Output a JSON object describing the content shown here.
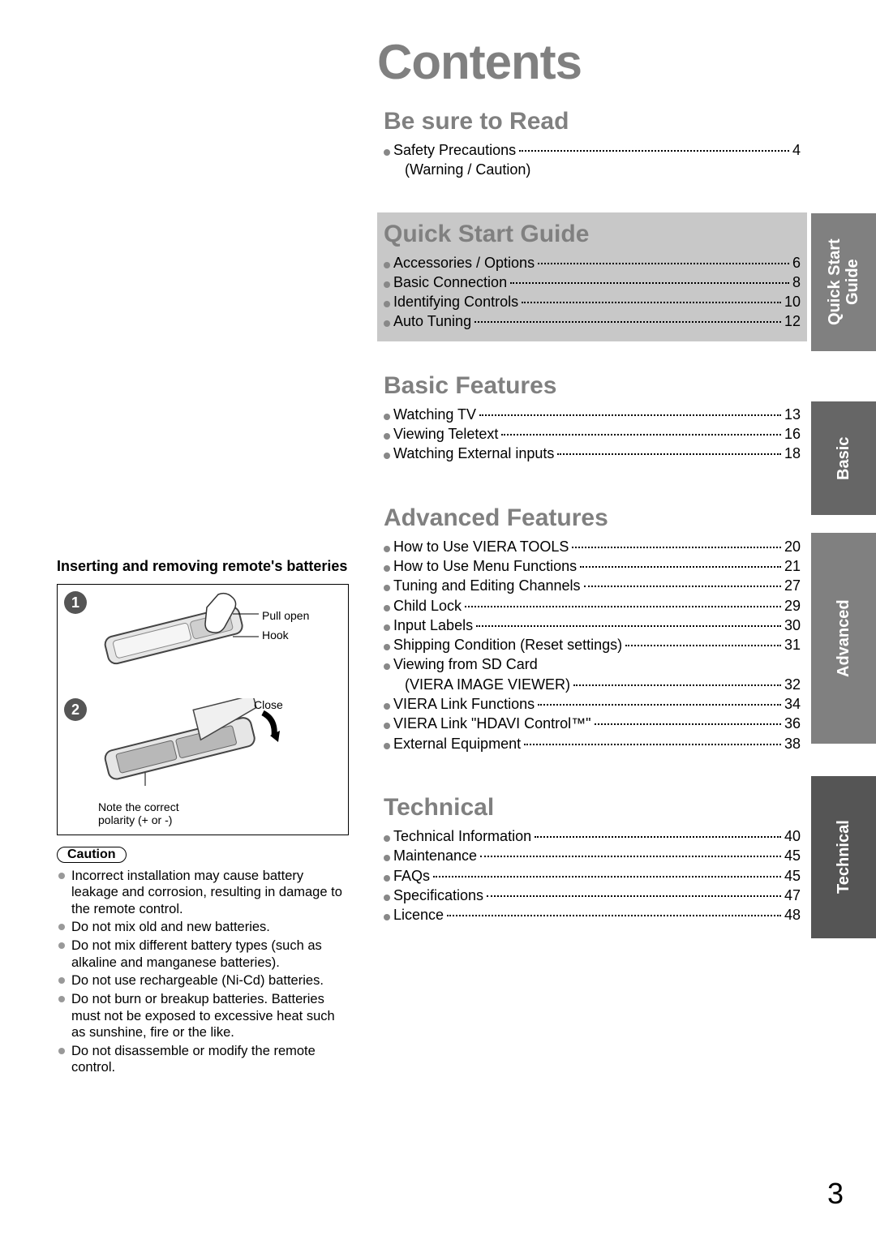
{
  "pageNumber": "3",
  "contentsTitle": "Contents",
  "leftCol": {
    "heading": "Inserting and removing remote's batteries",
    "step1": "1",
    "step2": "2",
    "labelPullOpen": "Pull open",
    "labelHook": "Hook",
    "labelClose": "Close",
    "labelPolarity": "Note the correct polarity (+ or -)",
    "cautionLabel": "Caution",
    "cautions": [
      "Incorrect installation may cause battery leakage and corrosion, resulting in damage to the remote control.",
      "Do not mix old and new batteries.",
      "Do not mix different battery types (such as alkaline and manganese batteries).",
      "Do not use rechargeable (Ni-Cd) batteries.",
      "Do not burn or breakup batteries. Batteries must not be exposed to excessive heat such as sunshine, fire or the like.",
      "Do not disassemble or modify the remote control."
    ]
  },
  "sections": [
    {
      "title": "Be sure to Read",
      "grey": false,
      "items": [
        {
          "label": "Safety Precautions",
          "page": "4",
          "sublabel": "(Warning / Caution)"
        }
      ]
    },
    {
      "title": "Quick Start Guide",
      "grey": true,
      "items": [
        {
          "label": "Accessories / Options",
          "page": "6"
        },
        {
          "label": "Basic Connection",
          "page": "8"
        },
        {
          "label": "Identifying Controls",
          "page": "10"
        },
        {
          "label": "Auto Tuning",
          "page": "12"
        }
      ]
    },
    {
      "title": "Basic Features",
      "grey": false,
      "items": [
        {
          "label": "Watching TV",
          "page": "13"
        },
        {
          "label": "Viewing Teletext",
          "page": "16"
        },
        {
          "label": "Watching External inputs",
          "page": "18"
        }
      ]
    },
    {
      "title": "Advanced Features",
      "grey": false,
      "items": [
        {
          "label": "How to Use VIERA TOOLS",
          "page": "20"
        },
        {
          "label": "How to Use Menu Functions",
          "page": "21"
        },
        {
          "label": "Tuning and Editing Channels",
          "page": "27"
        },
        {
          "label": "Child Lock",
          "page": "29"
        },
        {
          "label": "Input Labels",
          "page": "30"
        },
        {
          "label": "Shipping Condition (Reset settings)",
          "page": "31"
        },
        {
          "label": "Viewing from SD Card",
          "nolead": true
        },
        {
          "label": "(VIERA IMAGE VIEWER)",
          "page": "32",
          "sub": true
        },
        {
          "label": "VIERA Link Functions",
          "page": "34"
        },
        {
          "label": "VIERA Link \"HDAVI Control™\"",
          "page": "36"
        },
        {
          "label": "External Equipment",
          "page": "38"
        }
      ]
    },
    {
      "title": "Technical",
      "grey": false,
      "items": [
        {
          "label": "Technical Information",
          "page": "40"
        },
        {
          "label": "Maintenance",
          "page": "45"
        },
        {
          "label": "FAQs",
          "page": "45"
        },
        {
          "label": "Specifications",
          "page": "47"
        },
        {
          "label": "Licence",
          "page": "48"
        }
      ]
    }
  ],
  "tabs": {
    "qsg": "Quick Start Guide",
    "basic": "Basic",
    "adv": "Advanced",
    "tech": "Technical"
  }
}
